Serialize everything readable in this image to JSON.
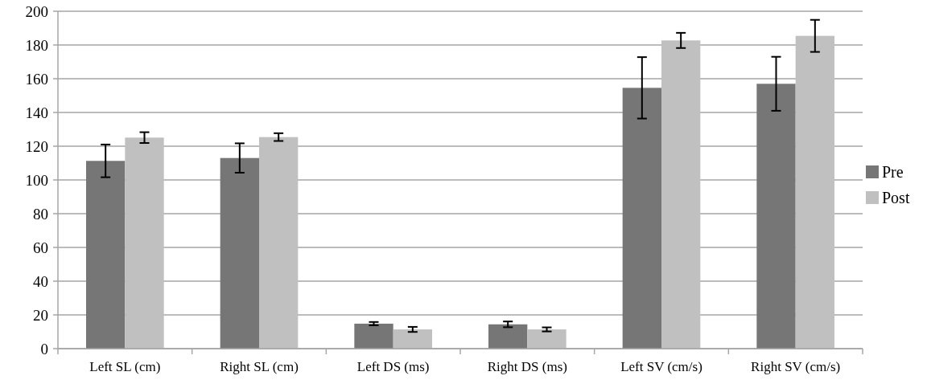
{
  "chart_data": {
    "type": "bar",
    "categories": [
      "Left SL (cm)",
      "Right SL (cm)",
      "Left DS (ms)",
      "Right DS (ms)",
      "Left SV (cm/s)",
      "Right SV (cm/s)"
    ],
    "series": [
      {
        "name": "Pre",
        "color": "#767676",
        "values": [
          111.3,
          113,
          14.8,
          14.4,
          154.6,
          157
        ],
        "errors": [
          9.7,
          8.7,
          1,
          1.7,
          18.2,
          16
        ]
      },
      {
        "name": "Post",
        "color": "#c0c0c0",
        "values": [
          125.1,
          125.4,
          11.4,
          11.4,
          182.7,
          185.4
        ],
        "errors": [
          3.2,
          2.3,
          1.5,
          1.2,
          4.5,
          9.5
        ]
      }
    ],
    "ylim": [
      0,
      200
    ],
    "yticks": [
      0,
      20,
      40,
      60,
      80,
      100,
      120,
      140,
      160,
      180,
      200
    ],
    "grid": "y",
    "legend": "right"
  }
}
